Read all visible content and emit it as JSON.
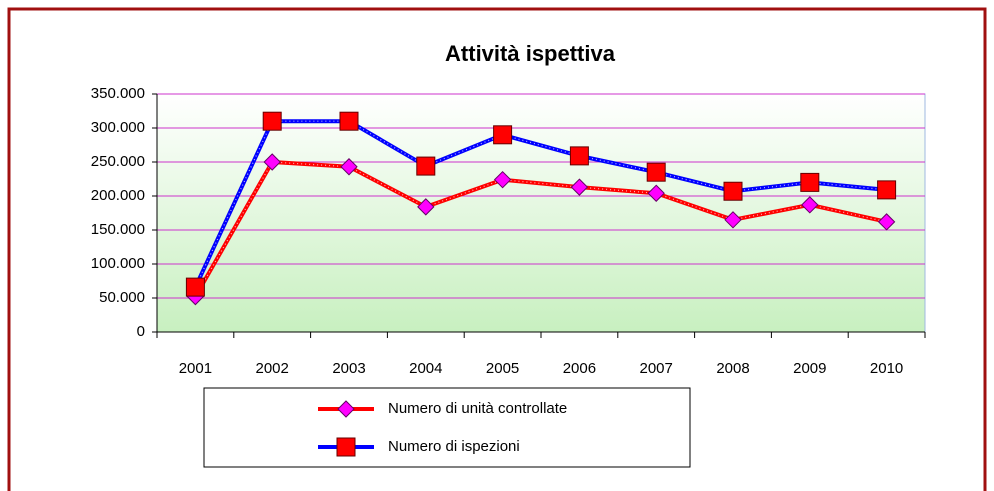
{
  "chart_data": {
    "type": "line",
    "title": "Attività ispettiva",
    "categories": [
      "2001",
      "2002",
      "2003",
      "2004",
      "2005",
      "2006",
      "2007",
      "2008",
      "2009",
      "2010"
    ],
    "series": [
      {
        "name": "Numero di unità controllate",
        "color": "#ff0000",
        "marker_color": "#ff00ff",
        "marker": "diamond",
        "values": [
          52000,
          250000,
          243000,
          184000,
          224000,
          213000,
          204000,
          165000,
          187000,
          162000
        ]
      },
      {
        "name": "Numero di ispezioni",
        "color": "#0000ff",
        "marker_color": "#ff0000",
        "marker": "square",
        "values": [
          66000,
          310000,
          310000,
          244000,
          290000,
          259000,
          235000,
          207000,
          220000,
          209000
        ]
      }
    ],
    "ylim": [
      0,
      350000
    ],
    "yticks": [
      0,
      {
        "value": 50000,
        "label": "50.000"
      },
      {
        "value": 100000,
        "label": "100.000"
      },
      {
        "value": 150000,
        "label": "150.000"
      },
      {
        "value": 200000,
        "label": "200.000"
      },
      {
        "value": 250000,
        "label": "250.000"
      },
      {
        "value": 300000,
        "label": "300.000"
      },
      {
        "value": 350000,
        "label": "350.000"
      }
    ],
    "grid": true,
    "grid_color": "#cc33cc",
    "legend": "bottom"
  }
}
